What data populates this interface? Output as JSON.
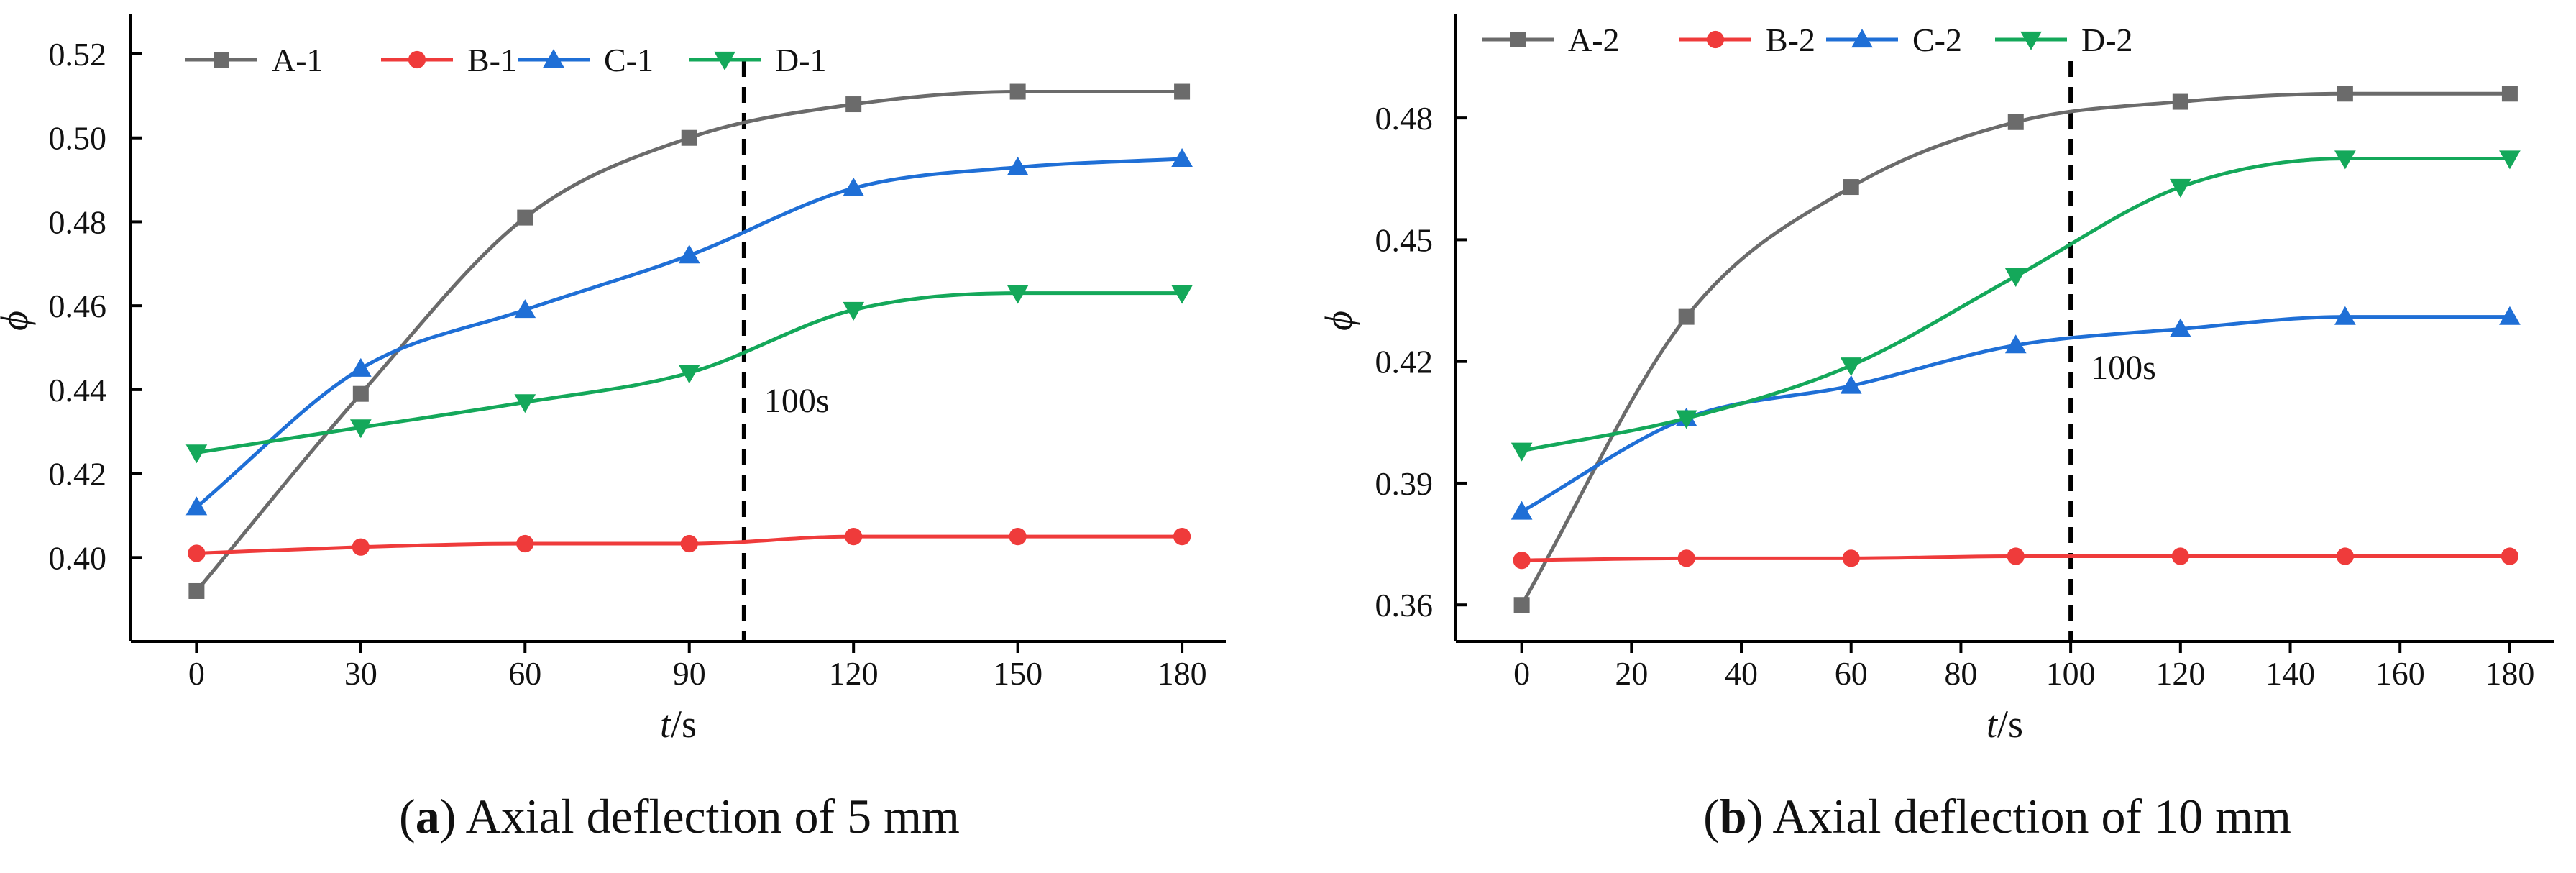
{
  "chart_data": [
    {
      "type": "line",
      "panel": "a",
      "caption": {
        "prefix": "(",
        "letter": "a",
        "suffix": ") Axial deflection of 5 mm"
      },
      "xlabel": {
        "italic": "t",
        "rest": "/s"
      },
      "ylabel": "ϕ",
      "xlim": [
        -12,
        188
      ],
      "ylim": [
        0.38,
        0.526
      ],
      "xticks": [
        0,
        30,
        60,
        90,
        120,
        150,
        180
      ],
      "xtick_labels": [
        "0",
        "30",
        "60",
        "90",
        "120",
        "150",
        "180"
      ],
      "yticks": [
        0.4,
        0.42,
        0.44,
        0.46,
        0.48,
        0.5,
        0.52
      ],
      "ytick_labels": [
        "0.40",
        "0.42",
        "0.44",
        "0.46",
        "0.48",
        "0.50",
        "0.52"
      ],
      "x": [
        0,
        30,
        60,
        90,
        120,
        150,
        180
      ],
      "series": [
        {
          "name": "A-1",
          "color": "#6b6b6b",
          "marker": "square",
          "values": [
            0.392,
            0.439,
            0.481,
            0.5,
            0.508,
            0.511,
            0.511
          ]
        },
        {
          "name": "B-1",
          "color": "#ef3b3b",
          "marker": "circle",
          "values": [
            0.401,
            0.4025,
            0.4033,
            0.4033,
            0.405,
            0.405,
            0.405
          ]
        },
        {
          "name": "C-1",
          "color": "#1f6fd6",
          "marker": "triangle-up",
          "values": [
            0.412,
            0.445,
            0.459,
            0.472,
            0.488,
            0.493,
            0.495
          ]
        },
        {
          "name": "D-1",
          "color": "#14a85a",
          "marker": "triangle-down",
          "values": [
            0.425,
            0.431,
            0.437,
            0.444,
            0.459,
            0.463,
            0.463
          ]
        }
      ],
      "annotation": {
        "x": 100,
        "label": "100s",
        "style": "dashed-vertical"
      },
      "legend_position": "top"
    },
    {
      "type": "line",
      "panel": "b",
      "caption": {
        "prefix": "(",
        "letter": "b",
        "suffix": ") Axial deflection of 10 mm"
      },
      "xlabel": {
        "italic": "t",
        "rest": "/s"
      },
      "ylabel": "ϕ",
      "xlim": [
        -12,
        188
      ],
      "ylim": [
        0.351,
        0.502
      ],
      "xticks": [
        0,
        20,
        40,
        60,
        80,
        100,
        120,
        140,
        160,
        180
      ],
      "xtick_labels": [
        "0",
        "20",
        "40",
        "60",
        "80",
        "100",
        "120",
        "140",
        "160",
        "180"
      ],
      "yticks": [
        0.36,
        0.39,
        0.42,
        0.45,
        0.48
      ],
      "ytick_labels": [
        "0.36",
        "0.39",
        "0.42",
        "0.45",
        "0.48"
      ],
      "x": [
        0,
        30,
        60,
        90,
        120,
        150,
        180
      ],
      "series": [
        {
          "name": "A-2",
          "color": "#6b6b6b",
          "marker": "square",
          "values": [
            0.36,
            0.431,
            0.463,
            0.479,
            0.484,
            0.486,
            0.486
          ]
        },
        {
          "name": "B-2",
          "color": "#ef3b3b",
          "marker": "circle",
          "values": [
            0.371,
            0.3715,
            0.3715,
            0.372,
            0.372,
            0.372,
            0.372
          ]
        },
        {
          "name": "C-2",
          "color": "#1f6fd6",
          "marker": "triangle-up",
          "values": [
            0.383,
            0.406,
            0.414,
            0.424,
            0.428,
            0.431,
            0.431
          ]
        },
        {
          "name": "D-2",
          "color": "#14a85a",
          "marker": "triangle-down",
          "values": [
            0.398,
            0.406,
            0.419,
            0.441,
            0.463,
            0.47,
            0.47
          ]
        }
      ],
      "annotation": {
        "x": 100,
        "label": "100s",
        "style": "dashed-vertical"
      },
      "legend_position": "top"
    }
  ]
}
